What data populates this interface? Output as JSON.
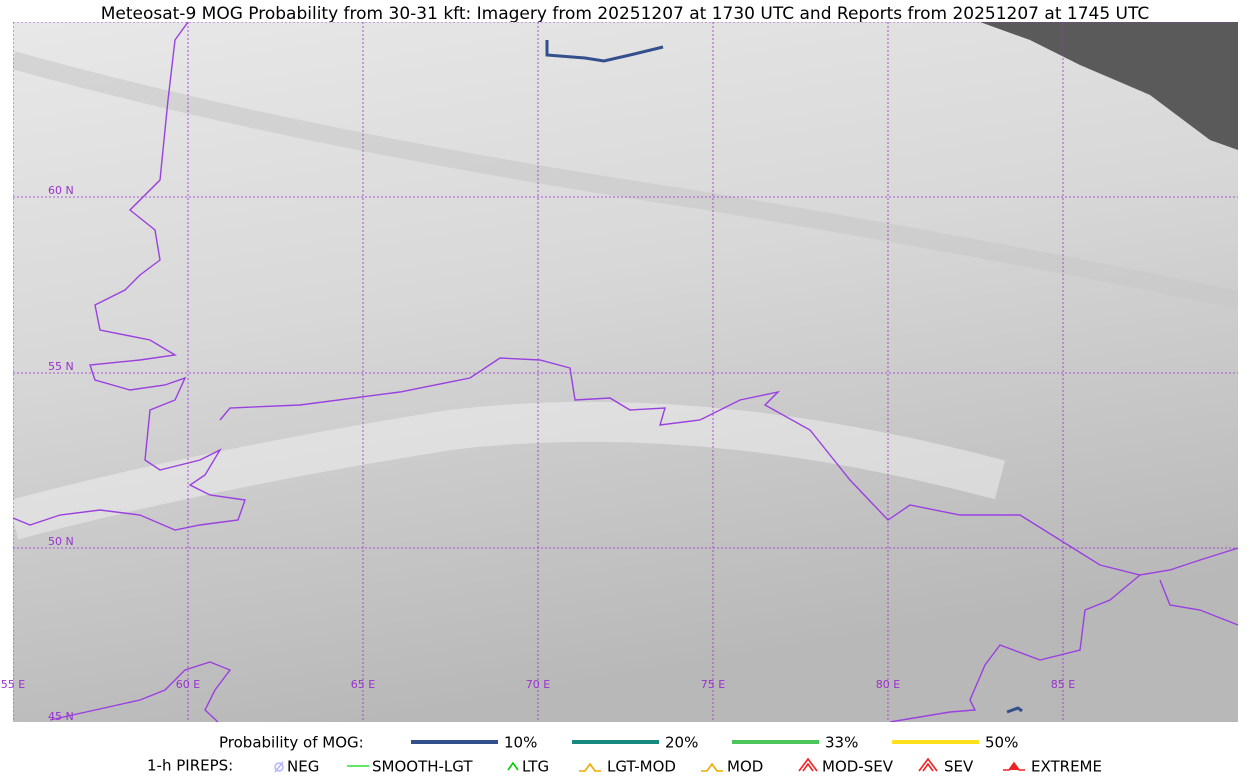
{
  "title": "Meteosat-9 MOG Probability from 30-31 kft: Imagery from 20251207 at 1730 UTC and Reports from 20251207 at 1745 UTC",
  "lat_labels": [
    "60 N",
    "55 N",
    "50 N",
    "45 N"
  ],
  "lon_labels": [
    "55 E",
    "60 E",
    "65 E",
    "70 E",
    "75 E",
    "80 E",
    "85 E"
  ],
  "probability_legend": {
    "title": "Probability of MOG:",
    "items": [
      {
        "label": "10%",
        "color": "#34508c"
      },
      {
        "label": "20%",
        "color": "#178a80"
      },
      {
        "label": "33%",
        "color": "#4cc55a"
      },
      {
        "label": "50%",
        "color": "#ffe01a"
      }
    ]
  },
  "pireps_legend": {
    "title": "1-h PIREPS:",
    "items": [
      {
        "label": "NEG",
        "color": "#b4b4ff"
      },
      {
        "label": "SMOOTH-LGT",
        "color": "#33dd33"
      },
      {
        "label": "LTG",
        "color": "#00cc00"
      },
      {
        "label": "LGT-MOD",
        "color": "#f0a800"
      },
      {
        "label": "MOD",
        "color": "#f0a800"
      },
      {
        "label": "MOD-SEV",
        "color": "#ee2222"
      },
      {
        "label": "SEV",
        "color": "#ee2222"
      },
      {
        "label": "EXTREME",
        "color": "#ee2222"
      }
    ]
  }
}
